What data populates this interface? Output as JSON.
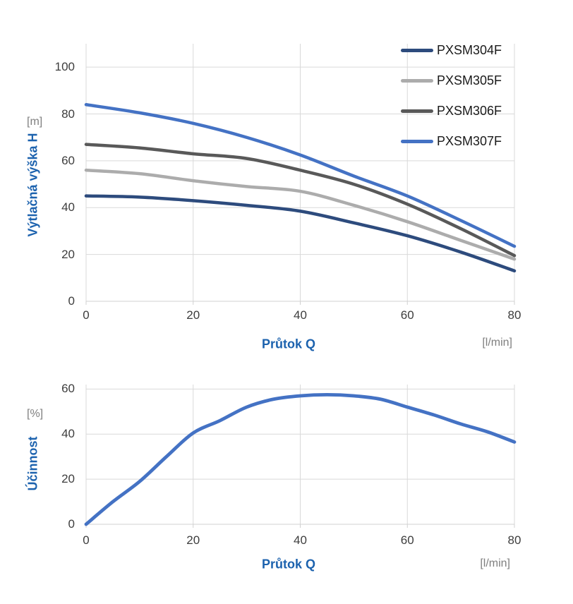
{
  "colors": {
    "background": "#ffffff",
    "grid": "#d9d9d9",
    "axis_line": "#d0d0d0",
    "tick_text": "#3d3d3d",
    "unit_text": "#7f7f7f",
    "axis_label_blue": "#1c62ae",
    "legend_text": "#1a1a1a"
  },
  "chart_data": [
    {
      "type": "line",
      "title": "",
      "xlabel": "Průtok Q",
      "xunit": "[l/min]",
      "ylabel": "Výtlačná výška H",
      "yunit": "[m]",
      "xlim": [
        0,
        80
      ],
      "ylim": [
        0,
        110
      ],
      "xticks": [
        0,
        20,
        40,
        60,
        80
      ],
      "yticks": [
        0,
        20,
        40,
        60,
        80,
        100
      ],
      "grid": true,
      "legend_position": "top-right",
      "x": [
        0,
        10,
        20,
        30,
        40,
        50,
        60,
        70,
        80
      ],
      "series": [
        {
          "name": "PXSM304F",
          "color": "#2d4b7d",
          "values": [
            45,
            44.5,
            43,
            41,
            38.5,
            33.5,
            28,
            21,
            13
          ]
        },
        {
          "name": "PXSM305F",
          "color": "#acacac",
          "values": [
            56,
            54.5,
            51.5,
            49,
            47,
            41,
            34,
            26,
            18
          ]
        },
        {
          "name": "PXSM306F",
          "color": "#595959",
          "values": [
            67,
            65.5,
            63,
            61,
            56,
            50,
            41.5,
            31,
            19.5
          ]
        },
        {
          "name": "PXSM307F",
          "color": "#4472c4",
          "values": [
            84,
            80.5,
            76,
            70,
            62.5,
            53.5,
            45,
            34.5,
            23.5
          ]
        }
      ]
    },
    {
      "type": "line",
      "title": "",
      "xlabel": "Průtok Q",
      "xunit": "[l/min]",
      "ylabel": "Účinnost",
      "yunit": "[%]",
      "xlim": [
        0,
        80
      ],
      "ylim": [
        0,
        62
      ],
      "xticks": [
        0,
        20,
        40,
        60,
        80
      ],
      "yticks": [
        0,
        20,
        40,
        60
      ],
      "grid": true,
      "legend_position": "none",
      "x": [
        0,
        5,
        10,
        15,
        20,
        25,
        30,
        35,
        40,
        45,
        50,
        55,
        60,
        65,
        70,
        75,
        80
      ],
      "series": [
        {
          "name": "",
          "color": "#4472c4",
          "values": [
            0,
            10,
            19,
            30,
            40.5,
            46,
            52,
            55.5,
            57,
            57.5,
            57,
            55.5,
            52,
            48.5,
            44.5,
            41,
            36.5
          ]
        }
      ]
    }
  ]
}
